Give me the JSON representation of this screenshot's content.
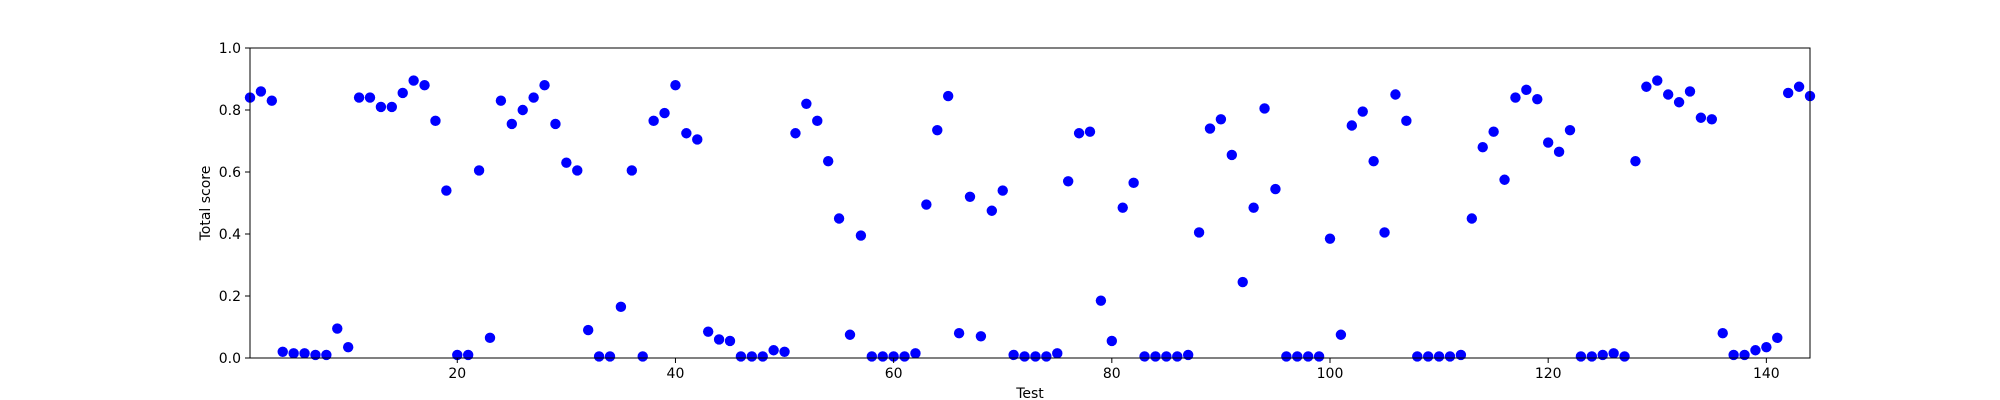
{
  "chart_data": {
    "type": "scatter",
    "title": "",
    "xlabel": "Test",
    "ylabel": "Total score",
    "xlim": [
      1,
      144
    ],
    "ylim": [
      0,
      1
    ],
    "xticks": [
      20,
      40,
      60,
      80,
      100,
      120,
      140
    ],
    "yticks": [
      0.0,
      0.2,
      0.4,
      0.6,
      0.8,
      1.0
    ],
    "ytick_labels": [
      "0.0",
      "0.2",
      "0.4",
      "0.6",
      "0.8",
      "1.0"
    ],
    "grid": false,
    "marker_color": "#0000ff",
    "points": [
      [
        1,
        0.84
      ],
      [
        2,
        0.86
      ],
      [
        3,
        0.83
      ],
      [
        4,
        0.02
      ],
      [
        5,
        0.015
      ],
      [
        6,
        0.015
      ],
      [
        7,
        0.01
      ],
      [
        8,
        0.01
      ],
      [
        9,
        0.095
      ],
      [
        10,
        0.035
      ],
      [
        11,
        0.84
      ],
      [
        12,
        0.84
      ],
      [
        13,
        0.81
      ],
      [
        14,
        0.81
      ],
      [
        15,
        0.855
      ],
      [
        16,
        0.895
      ],
      [
        17,
        0.88
      ],
      [
        18,
        0.765
      ],
      [
        19,
        0.54
      ],
      [
        20,
        0.01
      ],
      [
        21,
        0.01
      ],
      [
        22,
        0.605
      ],
      [
        23,
        0.065
      ],
      [
        24,
        0.83
      ],
      [
        25,
        0.755
      ],
      [
        26,
        0.8
      ],
      [
        27,
        0.84
      ],
      [
        28,
        0.88
      ],
      [
        29,
        0.755
      ],
      [
        30,
        0.63
      ],
      [
        31,
        0.605
      ],
      [
        32,
        0.09
      ],
      [
        33,
        0.005
      ],
      [
        34,
        0.005
      ],
      [
        35,
        0.165
      ],
      [
        36,
        0.605
      ],
      [
        37,
        0.005
      ],
      [
        38,
        0.765
      ],
      [
        39,
        0.79
      ],
      [
        40,
        0.88
      ],
      [
        41,
        0.725
      ],
      [
        42,
        0.705
      ],
      [
        43,
        0.085
      ],
      [
        44,
        0.06
      ],
      [
        45,
        0.055
      ],
      [
        46,
        0.005
      ],
      [
        47,
        0.005
      ],
      [
        48,
        0.005
      ],
      [
        49,
        0.025
      ],
      [
        50,
        0.02
      ],
      [
        51,
        0.725
      ],
      [
        52,
        0.82
      ],
      [
        53,
        0.765
      ],
      [
        54,
        0.635
      ],
      [
        55,
        0.45
      ],
      [
        56,
        0.075
      ],
      [
        57,
        0.395
      ],
      [
        58,
        0.005
      ],
      [
        59,
        0.005
      ],
      [
        60,
        0.005
      ],
      [
        61,
        0.005
      ],
      [
        62,
        0.015
      ],
      [
        63,
        0.495
      ],
      [
        64,
        0.735
      ],
      [
        65,
        0.845
      ],
      [
        66,
        0.08
      ],
      [
        67,
        0.52
      ],
      [
        68,
        0.07
      ],
      [
        69,
        0.475
      ],
      [
        70,
        0.54
      ],
      [
        71,
        0.01
      ],
      [
        72,
        0.005
      ],
      [
        73,
        0.005
      ],
      [
        74,
        0.005
      ],
      [
        75,
        0.015
      ],
      [
        76,
        0.57
      ],
      [
        77,
        0.725
      ],
      [
        78,
        0.73
      ],
      [
        79,
        0.185
      ],
      [
        80,
        0.055
      ],
      [
        81,
        0.485
      ],
      [
        82,
        0.565
      ],
      [
        83,
        0.005
      ],
      [
        84,
        0.005
      ],
      [
        85,
        0.005
      ],
      [
        86,
        0.005
      ],
      [
        87,
        0.01
      ],
      [
        88,
        0.405
      ],
      [
        89,
        0.74
      ],
      [
        90,
        0.77
      ],
      [
        91,
        0.655
      ],
      [
        92,
        0.245
      ],
      [
        93,
        0.485
      ],
      [
        94,
        0.805
      ],
      [
        95,
        0.545
      ],
      [
        96,
        0.005
      ],
      [
        97,
        0.005
      ],
      [
        98,
        0.005
      ],
      [
        99,
        0.005
      ],
      [
        100,
        0.385
      ],
      [
        101,
        0.075
      ],
      [
        102,
        0.75
      ],
      [
        103,
        0.795
      ],
      [
        104,
        0.635
      ],
      [
        105,
        0.405
      ],
      [
        106,
        0.85
      ],
      [
        107,
        0.765
      ],
      [
        108,
        0.005
      ],
      [
        109,
        0.005
      ],
      [
        110,
        0.005
      ],
      [
        111,
        0.005
      ],
      [
        112,
        0.01
      ],
      [
        113,
        0.45
      ],
      [
        114,
        0.68
      ],
      [
        115,
        0.73
      ],
      [
        116,
        0.575
      ],
      [
        117,
        0.84
      ],
      [
        118,
        0.865
      ],
      [
        119,
        0.835
      ],
      [
        120,
        0.695
      ],
      [
        121,
        0.665
      ],
      [
        122,
        0.735
      ],
      [
        123,
        0.005
      ],
      [
        124,
        0.005
      ],
      [
        125,
        0.01
      ],
      [
        126,
        0.015
      ],
      [
        127,
        0.005
      ],
      [
        128,
        0.635
      ],
      [
        129,
        0.875
      ],
      [
        130,
        0.895
      ],
      [
        131,
        0.85
      ],
      [
        132,
        0.825
      ],
      [
        133,
        0.86
      ],
      [
        134,
        0.775
      ],
      [
        135,
        0.77
      ],
      [
        136,
        0.08
      ],
      [
        137,
        0.01
      ],
      [
        138,
        0.01
      ],
      [
        139,
        0.025
      ],
      [
        140,
        0.035
      ],
      [
        141,
        0.065
      ],
      [
        142,
        0.855
      ],
      [
        143,
        0.875
      ],
      [
        144,
        0.845
      ]
    ]
  }
}
